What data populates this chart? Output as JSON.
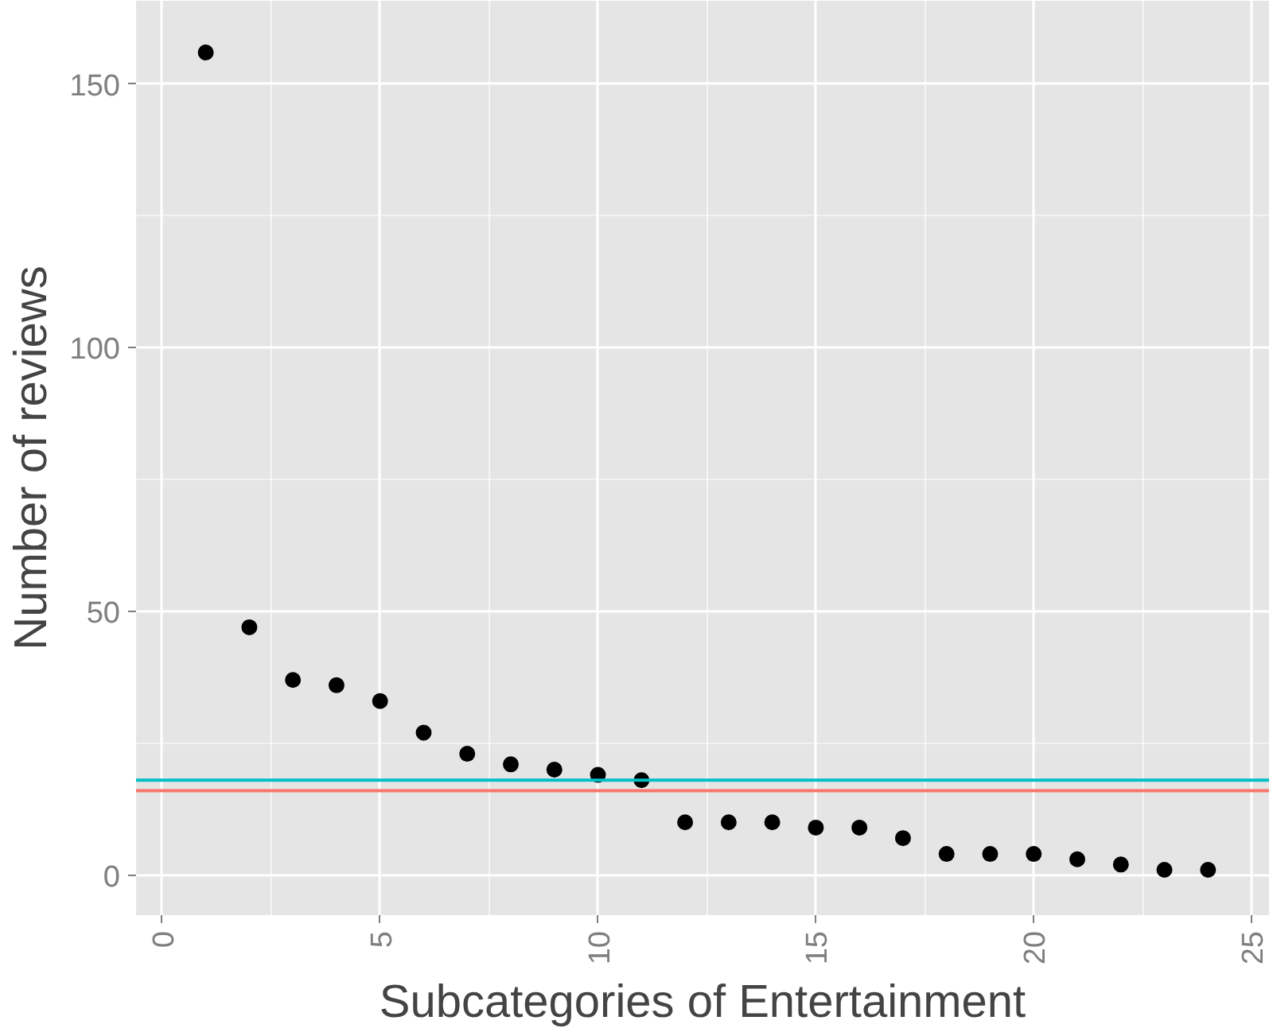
{
  "chart_data": {
    "type": "scatter",
    "xlabel": "Subcategories of Entertainment",
    "ylabel": "Number of reviews",
    "x": [
      1,
      2,
      3,
      4,
      5,
      6,
      7,
      8,
      9,
      10,
      11,
      12,
      13,
      14,
      15,
      16,
      17,
      18,
      19,
      20,
      21,
      22,
      23,
      24
    ],
    "series": [
      {
        "color": "#000000",
        "values": [
          156,
          47,
          37,
          36,
          33,
          27,
          23,
          21,
          20,
          19,
          18,
          10,
          10,
          10,
          9,
          9,
          7,
          4,
          4,
          4,
          3,
          2,
          1,
          1
        ]
      }
    ],
    "xlim": [
      -0.6,
      25.4
    ],
    "ylim": [
      -7.6,
      165.8
    ],
    "xticks": [
      0,
      5,
      10,
      15,
      20,
      25
    ],
    "yticks": [
      0,
      50,
      100,
      150
    ],
    "ref_lines": [
      {
        "axis": "y",
        "value": 18,
        "color": "#00bfc4"
      },
      {
        "axis": "y",
        "value": 16,
        "color": "#f8766d"
      }
    ],
    "grid": true,
    "marker": "circle"
  }
}
